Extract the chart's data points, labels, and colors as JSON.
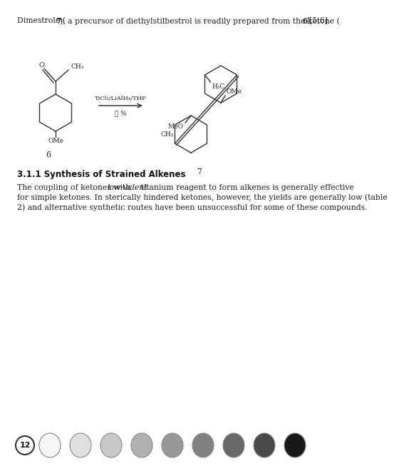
{
  "bg_color": "#ffffff",
  "top_text_parts": [
    {
      "text": "Dimestrole (",
      "bold": false,
      "italic": false
    },
    {
      "text": "7",
      "bold": true,
      "italic": false
    },
    {
      "text": "), a precursor of diethylstilbestrol is readily prepared from the ketone (",
      "bold": false,
      "italic": false
    },
    {
      "text": "6",
      "bold": true,
      "italic": false
    },
    {
      "text": ")[5,6]",
      "bold": false,
      "italic": false
    }
  ],
  "reagent_line1": "TiCl₃/LiAlH₄/THF",
  "reagent_line2": "Ⓢ %",
  "compound6_label": "6",
  "compound7_label": "7",
  "section_title": "3.1.1 Synthesis of Strained Alkenes",
  "body_text_line1_pre": "The coupling of ketones with ",
  "body_text_line1_italic": "low-valent",
  "body_text_line1_post": " titanium reagent to form alkenes is generally effective",
  "body_text_line2": "for simple ketones. In sterically hindered ketones, however, the yields are generally low (table",
  "body_text_line3": "2) and alternative synthetic routes have been unsuccessful for some of these compounds.",
  "page_number": "12",
  "circle_colors": [
    "#f5f5f5",
    "#e0e0e0",
    "#c8c8c8",
    "#b0b0b0",
    "#989898",
    "#808080",
    "#686868",
    "#484848",
    "#181818"
  ],
  "circle_edge_color": "#888888"
}
